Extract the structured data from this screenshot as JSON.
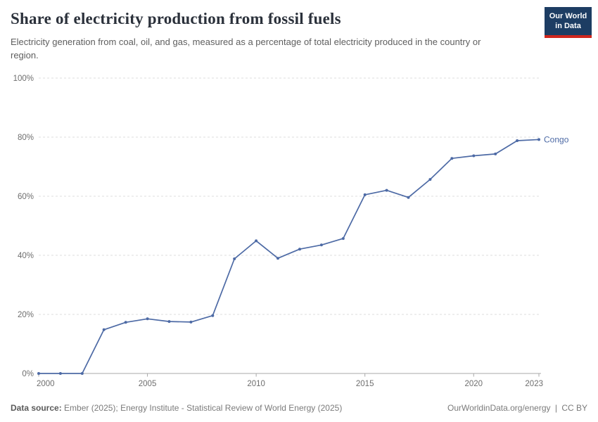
{
  "header": {
    "title": "Share of electricity production from fossil fuels",
    "subtitle": "Electricity generation from coal, oil, and gas, measured as a percentage of total electricity produced in the country or region.",
    "logo": {
      "line1": "Our World",
      "line2": "in Data",
      "bg_color": "#1d3d63",
      "accent_color": "#d0261d"
    }
  },
  "chart_data": {
    "type": "line",
    "title": "Share of electricity production from fossil fuels",
    "xlabel": "",
    "ylabel": "",
    "x": [
      2000,
      2001,
      2002,
      2003,
      2004,
      2005,
      2006,
      2007,
      2008,
      2009,
      2010,
      2011,
      2012,
      2013,
      2014,
      2015,
      2016,
      2017,
      2018,
      2019,
      2020,
      2021,
      2022,
      2023
    ],
    "series": [
      {
        "name": "Congo",
        "color": "#4d6aa5",
        "values": [
          0,
          0,
          0,
          14.8,
          17.3,
          18.5,
          17.6,
          17.4,
          19.6,
          38.8,
          44.9,
          39.0,
          42.1,
          43.5,
          45.7,
          60.5,
          62.0,
          59.6,
          65.7,
          72.8,
          73.7,
          74.3,
          78.8,
          79.2
        ]
      }
    ],
    "xlim": [
      2000,
      2023
    ],
    "ylim": [
      0,
      100
    ],
    "x_tick_values": [
      2000,
      2005,
      2010,
      2015,
      2020,
      2023
    ],
    "x_tick_labels": [
      "2000",
      "2005",
      "2010",
      "2015",
      "2020",
      "2023"
    ],
    "y_tick_values": [
      0,
      20,
      40,
      60,
      80,
      100
    ],
    "y_tick_labels": [
      "0%",
      "20%",
      "40%",
      "60%",
      "80%",
      "100%"
    ],
    "grid": "horizontal dashed gridlines",
    "legend": "series name labeled at end of line",
    "marker": "small filled circles on data points"
  },
  "footer": {
    "source_label": "Data source:",
    "source_text": "Ember (2025); Energy Institute - Statistical Review of World Energy (2025)",
    "url": "OurWorldinData.org/energy",
    "separator": "|",
    "license": "CC BY"
  }
}
